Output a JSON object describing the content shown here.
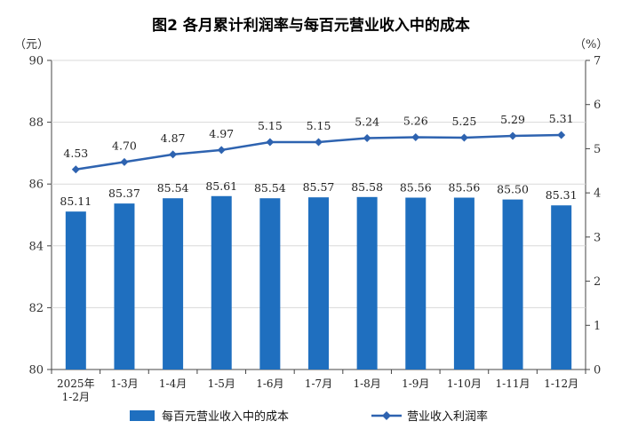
{
  "title": "图2  各月累计利润率与每百元营业收入中的成本",
  "left_unit": "（元）",
  "right_unit": "（%）",
  "colors": {
    "bar": "#1f6fbf",
    "line": "#2e63b0"
  },
  "chart_data": {
    "type": "bar+line",
    "categories": [
      "2025年\n1-2月",
      "1-3月",
      "1-4月",
      "1-5月",
      "1-6月",
      "1-7月",
      "1-8月",
      "1-9月",
      "1-10月",
      "1-11月",
      "1-12月"
    ],
    "series": [
      {
        "name": "每百元营业收入中的成本",
        "type": "bar",
        "axis": "left",
        "values": [
          85.11,
          85.37,
          85.54,
          85.61,
          85.54,
          85.57,
          85.58,
          85.56,
          85.56,
          85.5,
          85.31
        ],
        "labels": [
          "85.11",
          "85.37",
          "85.54",
          "85.61",
          "85.54",
          "85.57",
          "85.58",
          "85.56",
          "85.56",
          "85.50",
          "85.31"
        ]
      },
      {
        "name": "营业收入利润率",
        "type": "line",
        "axis": "right",
        "values": [
          4.53,
          4.7,
          4.87,
          4.97,
          5.15,
          5.15,
          5.24,
          5.26,
          5.25,
          5.29,
          5.31
        ],
        "labels": [
          "4.53",
          "4.70",
          "4.87",
          "4.97",
          "5.15",
          "5.15",
          "5.24",
          "5.26",
          "5.25",
          "5.29",
          "5.31"
        ]
      }
    ],
    "left_axis": {
      "min": 80,
      "max": 90,
      "ticks": [
        80,
        82,
        84,
        86,
        88,
        90
      ]
    },
    "right_axis": {
      "min": 0,
      "max": 7,
      "ticks": [
        0,
        1,
        2,
        3,
        4,
        5,
        6,
        7
      ]
    },
    "legend": "bottom"
  }
}
